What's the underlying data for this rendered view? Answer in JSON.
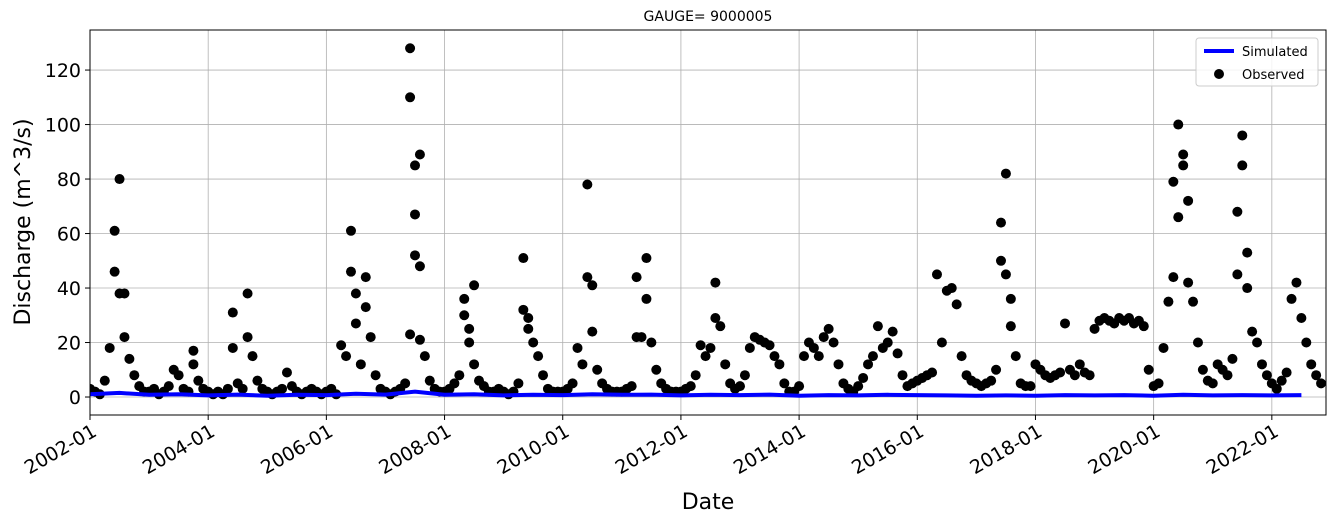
{
  "chart_data": {
    "type": "line",
    "title": "GAUGE= 9000005",
    "x_label": "Date",
    "y_label": "Discharge (m^3/s)",
    "xlim": [
      "2002-01",
      "2022-12"
    ],
    "xticks": [
      "2002-01",
      "2004-01",
      "2006-01",
      "2008-01",
      "2010-01",
      "2012-01",
      "2014-01",
      "2016-01",
      "2018-01",
      "2020-01",
      "2022-01"
    ],
    "ylim": [
      -6.6,
      134.7
    ],
    "yticks": [
      0,
      20,
      40,
      60,
      80,
      100,
      120
    ],
    "grid": true,
    "legend": "upper right",
    "series": [
      {
        "name": "Simulated",
        "type": "line",
        "color": "#0000ff",
        "x": [
          "2002-01",
          "2002-07",
          "2003-01",
          "2003-07",
          "2004-01",
          "2004-07",
          "2005-01",
          "2005-07",
          "2006-01",
          "2006-07",
          "2007-01",
          "2007-07",
          "2008-01",
          "2008-07",
          "2009-01",
          "2009-07",
          "2010-01",
          "2010-07",
          "2011-01",
          "2011-07",
          "2012-01",
          "2012-07",
          "2013-01",
          "2013-07",
          "2014-01",
          "2014-07",
          "2015-01",
          "2015-07",
          "2016-01",
          "2016-07",
          "2017-01",
          "2017-07",
          "2018-01",
          "2018-07",
          "2019-01",
          "2019-07",
          "2020-01",
          "2020-07",
          "2021-01",
          "2021-07",
          "2022-01",
          "2022-07"
        ],
        "values": [
          1.0,
          1.5,
          0.8,
          1.0,
          0.6,
          0.9,
          0.5,
          0.8,
          0.7,
          1.2,
          0.9,
          2.0,
          0.8,
          1.0,
          0.6,
          0.8,
          0.7,
          1.0,
          0.8,
          0.9,
          0.6,
          0.8,
          0.7,
          0.9,
          0.5,
          0.7,
          0.6,
          0.8,
          0.7,
          0.6,
          0.5,
          0.6,
          0.5,
          0.7,
          0.6,
          0.7,
          0.5,
          0.8,
          0.6,
          0.7,
          0.6,
          0.7
        ]
      },
      {
        "name": "Observed",
        "type": "scatter",
        "color": "#000000",
        "x": [
          "2002-01",
          "2002-02",
          "2002-03",
          "2002-04",
          "2002-05",
          "2002-06",
          "2002-06",
          "2002-07",
          "2002-07",
          "2002-08",
          "2002-08",
          "2002-09",
          "2002-10",
          "2002-11",
          "2002-12",
          "2003-01",
          "2003-02",
          "2003-03",
          "2003-04",
          "2003-05",
          "2003-06",
          "2003-07",
          "2003-08",
          "2003-09",
          "2003-10",
          "2003-10",
          "2003-11",
          "2003-12",
          "2004-01",
          "2004-02",
          "2004-03",
          "2004-04",
          "2004-05",
          "2004-06",
          "2004-06",
          "2004-07",
          "2004-08",
          "2004-09",
          "2004-09",
          "2004-10",
          "2004-11",
          "2004-12",
          "2005-01",
          "2005-02",
          "2005-03",
          "2005-04",
          "2005-05",
          "2005-06",
          "2005-07",
          "2005-08",
          "2005-09",
          "2005-10",
          "2005-11",
          "2005-12",
          "2006-01",
          "2006-02",
          "2006-03",
          "2006-04",
          "2006-05",
          "2006-06",
          "2006-06",
          "2006-07",
          "2006-07",
          "2006-08",
          "2006-09",
          "2006-09",
          "2006-10",
          "2006-11",
          "2006-12",
          "2007-01",
          "2007-02",
          "2007-03",
          "2007-04",
          "2007-05",
          "2007-06",
          "2007-06",
          "2007-06",
          "2007-07",
          "2007-07",
          "2007-07",
          "2007-08",
          "2007-08",
          "2007-08",
          "2007-09",
          "2007-10",
          "2007-11",
          "2007-12",
          "2008-01",
          "2008-02",
          "2008-03",
          "2008-04",
          "2008-05",
          "2008-05",
          "2008-06",
          "2008-06",
          "2008-07",
          "2008-07",
          "2008-08",
          "2008-09",
          "2008-10",
          "2008-11",
          "2008-12",
          "2009-01",
          "2009-02",
          "2009-03",
          "2009-04",
          "2009-05",
          "2009-05",
          "2009-06",
          "2009-06",
          "2009-07",
          "2009-08",
          "2009-09",
          "2009-10",
          "2009-11",
          "2009-12",
          "2010-01",
          "2010-02",
          "2010-03",
          "2010-04",
          "2010-05",
          "2010-06",
          "2010-06",
          "2010-07",
          "2010-07",
          "2010-08",
          "2010-09",
          "2010-10",
          "2010-11",
          "2010-12",
          "2011-01",
          "2011-02",
          "2011-03",
          "2011-04",
          "2011-04",
          "2011-05",
          "2011-06",
          "2011-06",
          "2011-07",
          "2011-08",
          "2011-09",
          "2011-10",
          "2011-11",
          "2011-12",
          "2012-01",
          "2012-02",
          "2012-03",
          "2012-04",
          "2012-05",
          "2012-06",
          "2012-07",
          "2012-08",
          "2012-08",
          "2012-09",
          "2012-10",
          "2012-11",
          "2012-12",
          "2013-01",
          "2013-02",
          "2013-03",
          "2013-04",
          "2013-05",
          "2013-06",
          "2013-07",
          "2013-08",
          "2013-09",
          "2013-10",
          "2013-11",
          "2013-12",
          "2014-01",
          "2014-02",
          "2014-03",
          "2014-04",
          "2014-05",
          "2014-06",
          "2014-07",
          "2014-08",
          "2014-09",
          "2014-10",
          "2014-11",
          "2014-12",
          "2015-01",
          "2015-02",
          "2015-03",
          "2015-04",
          "2015-05",
          "2015-06",
          "2015-07",
          "2015-08",
          "2015-09",
          "2015-10",
          "2015-11",
          "2015-12",
          "2016-01",
          "2016-02",
          "2016-03",
          "2016-04",
          "2016-05",
          "2016-06",
          "2016-07",
          "2016-08",
          "2016-09",
          "2016-10",
          "2016-11",
          "2016-12",
          "2017-01",
          "2017-02",
          "2017-03",
          "2017-04",
          "2017-05",
          "2017-06",
          "2017-06",
          "2017-07",
          "2017-07",
          "2017-08",
          "2017-08",
          "2017-09",
          "2017-10",
          "2017-11",
          "2017-12",
          "2018-01",
          "2018-02",
          "2018-03",
          "2018-04",
          "2018-05",
          "2018-06",
          "2018-07",
          "2018-08",
          "2018-09",
          "2018-10",
          "2018-11",
          "2018-12",
          "2019-01",
          "2019-02",
          "2019-03",
          "2019-04",
          "2019-05",
          "2019-06",
          "2019-07",
          "2019-08",
          "2019-09",
          "2019-10",
          "2019-11",
          "2019-12",
          "2020-01",
          "2020-02",
          "2020-03",
          "2020-04",
          "2020-05",
          "2020-05",
          "2020-06",
          "2020-06",
          "2020-07",
          "2020-07",
          "2020-08",
          "2020-08",
          "2020-09",
          "2020-10",
          "2020-11",
          "2020-12",
          "2021-01",
          "2021-02",
          "2021-03",
          "2021-04",
          "2021-05",
          "2021-06",
          "2021-06",
          "2021-07",
          "2021-07",
          "2021-08",
          "2021-08",
          "2021-09",
          "2021-10",
          "2021-11",
          "2021-12",
          "2022-01",
          "2022-02",
          "2022-03",
          "2022-04",
          "2022-05",
          "2022-06",
          "2022-07",
          "2022-08",
          "2022-09",
          "2022-10",
          "2022-11"
        ],
        "values": [
          3,
          2,
          1,
          6,
          18,
          61,
          46,
          80,
          38,
          38,
          22,
          14,
          8,
          4,
          2,
          2,
          3,
          1,
          2,
          4,
          10,
          8,
          3,
          2,
          12,
          17,
          6,
          3,
          2,
          1,
          2,
          1,
          3,
          31,
          18,
          5,
          3,
          38,
          22,
          15,
          6,
          3,
          2,
          1,
          2,
          3,
          9,
          4,
          2,
          1,
          2,
          3,
          2,
          1,
          2,
          3,
          1,
          19,
          15,
          61,
          46,
          38,
          27,
          12,
          33,
          44,
          22,
          8,
          3,
          2,
          1,
          2,
          3,
          5,
          23,
          128,
          110,
          85,
          67,
          52,
          89,
          48,
          21,
          15,
          6,
          3,
          2,
          2,
          3,
          5,
          8,
          36,
          30,
          25,
          20,
          41,
          12,
          6,
          4,
          2,
          2,
          3,
          2,
          1,
          2,
          5,
          51,
          32,
          29,
          25,
          20,
          15,
          8,
          3,
          2,
          2,
          2,
          3,
          5,
          18,
          12,
          78,
          44,
          41,
          24,
          10,
          5,
          3,
          2,
          2,
          2,
          3,
          4,
          44,
          22,
          22,
          51,
          36,
          20,
          10,
          5,
          3,
          2,
          2,
          2,
          3,
          4,
          8,
          19,
          15,
          18,
          42,
          29,
          26,
          12,
          5,
          3,
          4,
          8,
          18,
          22,
          21,
          20,
          19,
          15,
          12,
          5,
          2,
          2,
          4,
          15,
          20,
          18,
          15,
          22,
          25,
          20,
          12,
          5,
          3,
          2,
          4,
          7,
          12,
          15,
          26,
          18,
          20,
          24,
          16,
          8,
          4,
          5,
          6,
          7,
          8,
          9,
          45,
          20,
          39,
          40,
          34,
          15,
          8,
          6,
          5,
          4,
          5,
          6,
          10,
          64,
          50,
          82,
          45,
          36,
          26,
          15,
          5,
          4,
          4,
          12,
          10,
          8,
          7,
          8,
          9,
          27,
          10,
          8,
          12,
          9,
          8,
          25,
          28,
          29,
          28,
          27,
          29,
          28,
          29,
          27,
          28,
          26,
          10,
          4,
          5,
          18,
          35,
          44,
          79,
          66,
          100,
          89,
          85,
          72,
          42,
          35,
          20,
          10,
          6,
          5,
          12,
          10,
          8,
          14,
          45,
          68,
          96,
          85,
          53,
          40,
          24,
          20,
          12,
          8,
          5,
          3,
          6,
          9,
          36,
          42,
          29,
          20,
          12,
          8,
          5
        ]
      }
    ]
  }
}
